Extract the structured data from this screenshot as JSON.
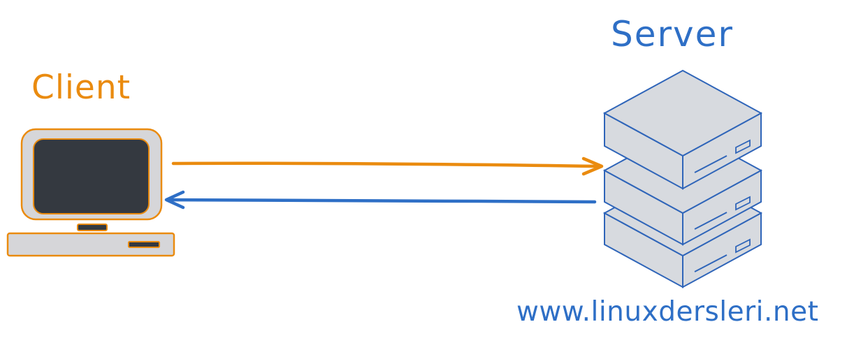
{
  "diagram": {
    "client_label": "Client",
    "server_label": "Server",
    "footer_text": "www.linuxdersleri.net",
    "colors": {
      "client_orange": "#ea8b0f",
      "server_blue": "#2e6fc6",
      "device_gray": "#d6d6d9",
      "screen_dark": "#343940",
      "server_stroke": "#2f65b9",
      "server_fill": "#d7dadf"
    },
    "icons": {
      "client": "computer-icon",
      "server": "server-rack-icon",
      "request_arrow": "arrow-right-icon",
      "response_arrow": "arrow-left-icon"
    }
  }
}
